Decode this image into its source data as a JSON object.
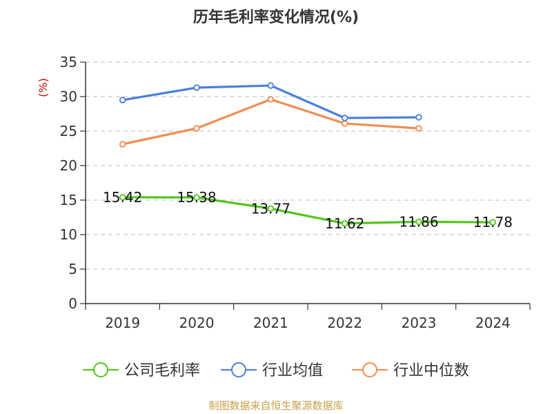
{
  "chart_data": {
    "type": "line",
    "title": "历年毛利率变化情况(%)",
    "ylabel": "(%)",
    "categories": [
      "2019",
      "2020",
      "2021",
      "2022",
      "2023",
      "2024"
    ],
    "ylim": [
      0,
      35
    ],
    "yticks": [
      0,
      5,
      10,
      15,
      20,
      25,
      30,
      35
    ],
    "grid": true,
    "legend_position": "bottom",
    "series": [
      {
        "name": "公司毛利率",
        "color": "#52c41a",
        "values": [
          15.42,
          15.38,
          13.77,
          11.62,
          11.86,
          11.78
        ],
        "labels": [
          "15.42",
          "15.38",
          "13.77",
          "11.62",
          "11.86",
          "11.78"
        ]
      },
      {
        "name": "行业均值",
        "color": "#4a7fdb",
        "values": [
          29.5,
          31.3,
          31.6,
          26.9,
          27.0,
          null
        ]
      },
      {
        "name": "行业中位数",
        "color": "#f28c50",
        "values": [
          23.1,
          25.4,
          29.6,
          26.1,
          25.4,
          null
        ]
      }
    ]
  },
  "source": "制图数据来自恒生聚源数据库"
}
